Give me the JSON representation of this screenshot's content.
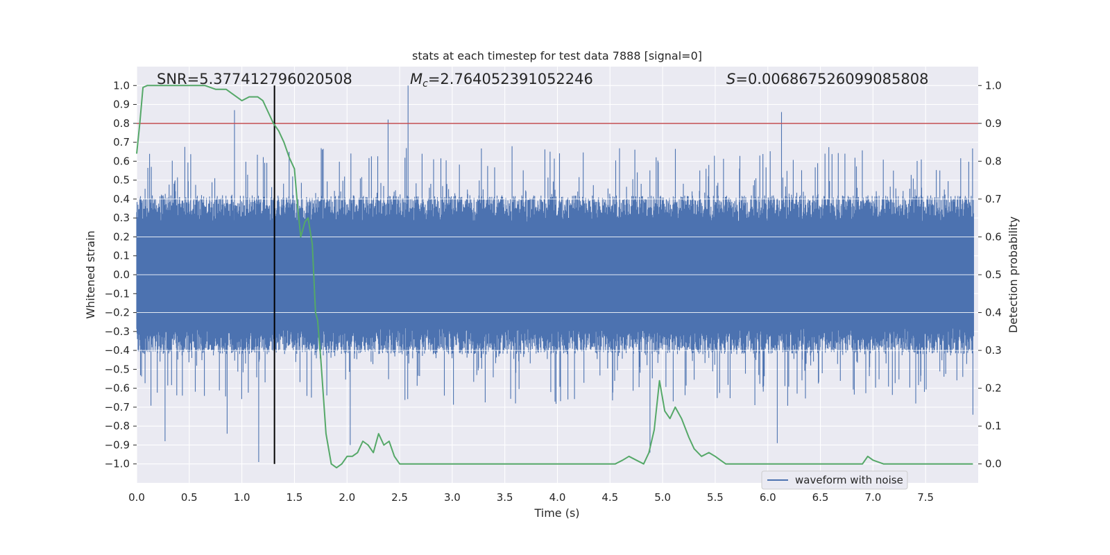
{
  "chart_data": {
    "type": "line",
    "title": "stats at each timestep for test data 7888 [signal=0]",
    "xlabel": "Time (s)",
    "ylabel_left": "Whitened strain",
    "ylabel_right": "Detection probability",
    "xlim": [
      0.0,
      8.0
    ],
    "ylim_left": [
      -1.1,
      1.1
    ],
    "ylim_right": [
      -0.05,
      1.05
    ],
    "x_ticks": [
      "0.0",
      "0.5",
      "1.0",
      "1.5",
      "2.0",
      "2.5",
      "3.0",
      "3.5",
      "4.0",
      "4.5",
      "5.0",
      "5.5",
      "6.0",
      "6.5",
      "7.0",
      "7.5"
    ],
    "y_left_ticks": [
      "1.0",
      "0.9",
      "0.8",
      "0.7",
      "0.6",
      "0.5",
      "0.4",
      "0.3",
      "0.2",
      "0.1",
      "0.0",
      "−0.1",
      "−0.2",
      "−0.3",
      "−0.4",
      "−0.5",
      "−0.6",
      "−0.7",
      "−0.8",
      "−0.9",
      "−1.0"
    ],
    "y_right_ticks": [
      "1.0",
      "0.9",
      "0.8",
      "0.7",
      "0.6",
      "0.5",
      "0.4",
      "0.3",
      "0.2",
      "0.1",
      "0.0"
    ],
    "annotations": {
      "snr": "SNR=5.377412796020508",
      "mc_symbol": "M",
      "mc_sub": "c",
      "mc_value": "=2.764052391052246",
      "s_symbol": "S",
      "s_value": "=0.006867526099085808"
    },
    "threshold_line": {
      "value": 0.8,
      "axis": "left",
      "color": "#c44e52"
    },
    "vertical_marker": {
      "x": 1.31,
      "ymin": -1.0,
      "ymax": 1.0,
      "color": "#000000"
    },
    "legend": {
      "label": "waveform with noise",
      "location": "lower-right"
    },
    "series": [
      {
        "name": "waveform with noise",
        "axis": "left",
        "color": "#4c72b0",
        "envelope_upper": 0.4,
        "envelope_lower": -0.4,
        "notable_peaks": [
          {
            "x": 0.93,
            "y": 0.87
          },
          {
            "x": 2.39,
            "y": 0.82
          },
          {
            "x": 2.58,
            "y": 1.0
          },
          {
            "x": 6.13,
            "y": 0.86
          },
          {
            "x": 0.27,
            "y": -0.88
          },
          {
            "x": 0.86,
            "y": -0.84
          },
          {
            "x": 1.16,
            "y": -0.99
          },
          {
            "x": 2.03,
            "y": -0.9
          },
          {
            "x": 4.88,
            "y": -0.94
          },
          {
            "x": 6.09,
            "y": -0.89
          },
          {
            "x": 7.95,
            "y": -0.74
          }
        ]
      },
      {
        "name": "detection probability",
        "axis": "right",
        "color": "#55a868",
        "x": [
          0.0,
          0.03,
          0.06,
          0.1,
          0.15,
          0.3,
          0.5,
          0.65,
          0.75,
          0.85,
          0.9,
          0.95,
          1.0,
          1.07,
          1.15,
          1.2,
          1.25,
          1.3,
          1.35,
          1.4,
          1.45,
          1.5,
          1.53,
          1.56,
          1.6,
          1.63,
          1.67,
          1.7,
          1.72,
          1.75,
          1.8,
          1.85,
          1.9,
          1.95,
          2.0,
          2.05,
          2.1,
          2.15,
          2.2,
          2.25,
          2.3,
          2.35,
          2.4,
          2.45,
          2.5,
          2.6,
          2.8,
          3.2,
          3.5,
          3.7,
          4.2,
          4.3,
          4.5,
          4.55,
          4.62,
          4.68,
          4.75,
          4.82,
          4.87,
          4.92,
          4.97,
          5.02,
          5.07,
          5.12,
          5.18,
          5.25,
          5.3,
          5.37,
          5.44,
          5.5,
          5.55,
          5.6,
          5.7,
          5.8,
          5.9,
          6.0,
          6.1,
          6.2,
          6.3,
          6.4,
          6.5,
          6.6,
          6.7,
          6.8,
          6.9,
          6.95,
          7.0,
          7.1,
          7.2,
          7.3,
          7.4,
          7.5,
          7.6,
          7.7,
          7.8,
          7.9,
          7.95
        ],
        "y": [
          0.82,
          0.9,
          0.995,
          1.0,
          1.0,
          1.0,
          1.0,
          1.0,
          0.99,
          0.99,
          0.98,
          0.97,
          0.96,
          0.97,
          0.97,
          0.96,
          0.93,
          0.9,
          0.88,
          0.85,
          0.81,
          0.78,
          0.68,
          0.6,
          0.64,
          0.65,
          0.58,
          0.4,
          0.38,
          0.28,
          0.08,
          0.0,
          -0.01,
          0.0,
          0.02,
          0.02,
          0.03,
          0.06,
          0.05,
          0.03,
          0.08,
          0.05,
          0.06,
          0.02,
          0.0,
          0.0,
          0.0,
          0.0,
          0.0,
          0.0,
          0.0,
          0.0,
          0.0,
          0.0,
          0.01,
          0.02,
          0.01,
          0.0,
          0.03,
          0.09,
          0.22,
          0.14,
          0.12,
          0.15,
          0.12,
          0.07,
          0.04,
          0.02,
          0.03,
          0.02,
          0.01,
          0.0,
          0.0,
          0.0,
          0.0,
          0.0,
          0.0,
          0.0,
          0.0,
          0.0,
          0.0,
          0.0,
          0.0,
          0.0,
          0.0,
          0.02,
          0.01,
          0.0,
          0.0,
          0.0,
          0.0,
          0.0,
          0.0,
          0.0,
          0.0,
          0.0,
          0.0
        ]
      }
    ]
  }
}
